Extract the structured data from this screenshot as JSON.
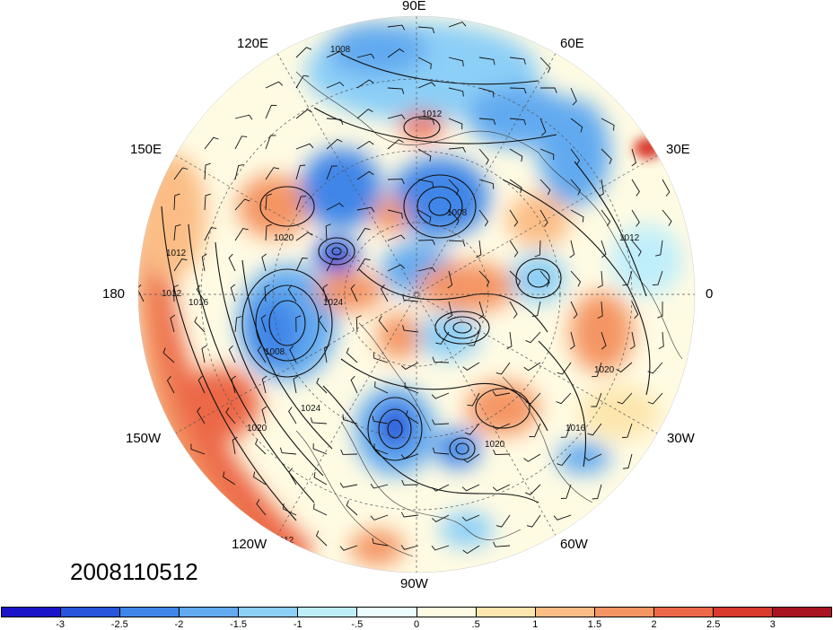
{
  "map": {
    "projection": "north-polar-stereographic",
    "longitude_labels": [
      "90E",
      "60E",
      "30E",
      "0",
      "30W",
      "60W",
      "90W",
      "120W",
      "150W",
      "180",
      "150E",
      "120E"
    ],
    "isobar_labels": [
      "1008",
      "1012",
      "1016",
      "1020",
      "1024"
    ],
    "timestamp": "2008110512"
  },
  "colorbar": {
    "colors": [
      "#1a14c8",
      "#2855dc",
      "#3f86e8",
      "#62aaf0",
      "#8ccff7",
      "#bfeefb",
      "#ebfbfe",
      "#fffbe3",
      "#fde6ad",
      "#fbbd85",
      "#f49563",
      "#ec6847",
      "#d83a2e",
      "#a8141f"
    ],
    "tick_labels": [
      "-3",
      "-2.5",
      "-2",
      "-1.5",
      "-1",
      "-.5",
      "0",
      ".5",
      "1",
      "1.5",
      "2",
      "2.5",
      "3"
    ]
  }
}
